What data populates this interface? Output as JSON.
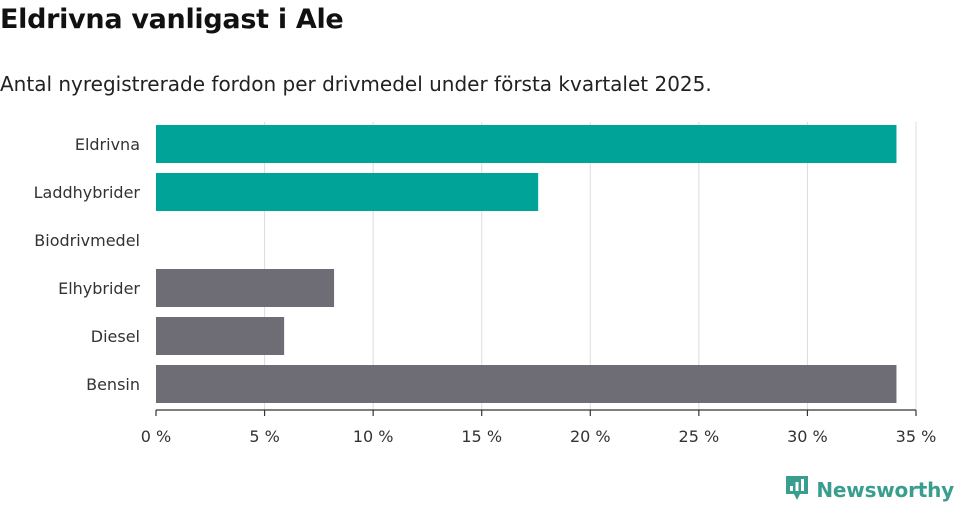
{
  "title": "Eldrivna vanligast i Ale",
  "subtitle": "Antal nyregistrerade fordon per drivmedel under första kvartalet 2025.",
  "brand": {
    "name": "Newsworthy",
    "icon": "newsworthy-logo-icon"
  },
  "colors": {
    "highlight": "#00a398",
    "default": "#6e6d75",
    "grid": "#dcdcdc",
    "axis": "#333333"
  },
  "chart_data": {
    "type": "bar",
    "orientation": "horizontal",
    "categories": [
      "Eldrivna",
      "Laddhybrider",
      "Biodrivmedel",
      "Elhybrider",
      "Diesel",
      "Bensin"
    ],
    "values": [
      34.1,
      17.6,
      0,
      8.2,
      5.9,
      34.1
    ],
    "highlighted": [
      true,
      true,
      false,
      false,
      false,
      false
    ],
    "unit": "%",
    "xlim": [
      0,
      35
    ],
    "xticks": [
      0,
      5,
      10,
      15,
      20,
      25,
      30,
      35
    ],
    "xtick_labels": [
      "0 %",
      "5 %",
      "10 %",
      "15 %",
      "20 %",
      "25 %",
      "30 %",
      "35 %"
    ],
    "grid": true
  }
}
